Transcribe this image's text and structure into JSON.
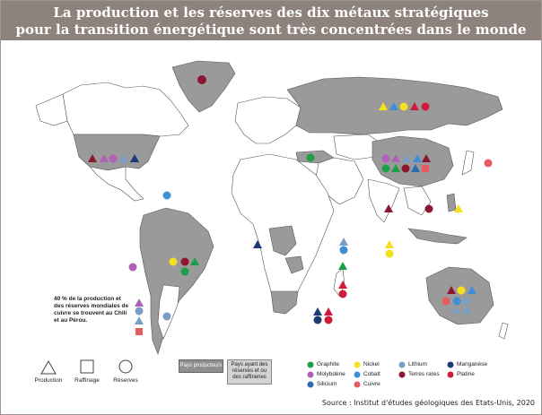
{
  "title": {
    "line1": "La production et les réserves des dix métaux stratégiques",
    "line2": "pour la transition énergétique sont très concentrées dans le monde"
  },
  "note": "40 % de la production et des réserves mondiales de cuivre se trouvent au Chili et au Pérou.",
  "legend": {
    "shapes": {
      "production": "Production",
      "raffinage": "Raffinage",
      "reserves": "Réserves"
    },
    "boxes": {
      "producers": "Pays producteurs",
      "refiners": "Pays ayant des réserves et ou des raffineries"
    },
    "metals": [
      {
        "name": "Graphite",
        "color": "#1e9e4a"
      },
      {
        "name": "Molybdène",
        "color": "#b061b8"
      },
      {
        "name": "Silicium",
        "color": "#2d6cb5"
      },
      {
        "name": "Nickel",
        "color": "#f4e01c"
      },
      {
        "name": "Cobalt",
        "color": "#3f8fd6"
      },
      {
        "name": "Cuivre",
        "color": "#e85a61"
      },
      {
        "name": "Lithium",
        "color": "#7a9dc4"
      },
      {
        "name": "Terres rares",
        "color": "#8c1730"
      },
      {
        "name": "Manganèse",
        "color": "#1d3a73"
      },
      {
        "name": "Platine",
        "color": "#d11b3b"
      }
    ]
  },
  "colors": {
    "producer_land": "#9a9a9a",
    "other_land": "#ffffff",
    "title_bar": "#8e827c"
  },
  "source": "Source : Institut d'études géologiques des Etats-Unis, 2020"
}
